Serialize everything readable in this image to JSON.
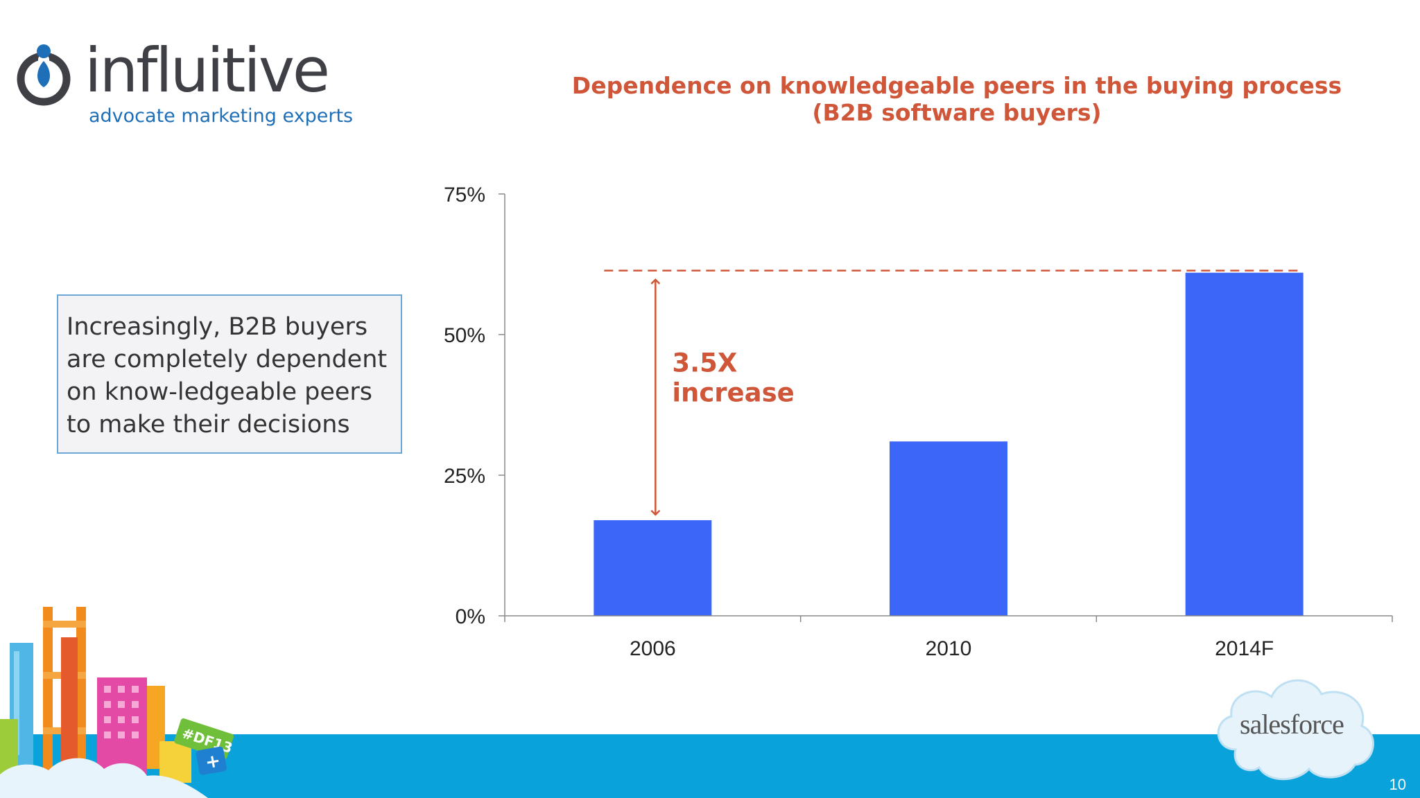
{
  "brand": {
    "name": "influitive",
    "tagline": "advocate marketing experts"
  },
  "callout": {
    "text": "Increasingly, B2B buyers are completely dependent on know-ledgeable peers to make their decisions"
  },
  "annotation": {
    "line1": "3.5X",
    "line2": "increase"
  },
  "footer": {
    "page_number": "10",
    "partner_logo": "salesforce",
    "event_badge": "#DF13",
    "badge_plus": "+"
  },
  "colors": {
    "bar": "#3b66f8",
    "accent": "#cf5638",
    "footer_band": "#0aa2da",
    "callout_border": "#6aa6d6"
  },
  "chart_data": {
    "type": "bar",
    "title_line1": "Dependence on knowledgeable peers in the buying process",
    "title_line2": "(B2B software buyers)",
    "categories": [
      "2006",
      "2010",
      "2014F"
    ],
    "values": [
      17,
      31,
      61
    ],
    "yticks": [
      0,
      25,
      50,
      75
    ],
    "ytick_labels": [
      "0%",
      "25%",
      "50%",
      "75%"
    ],
    "ylim": [
      0,
      75
    ],
    "xlabel": "",
    "ylabel": "",
    "grid": false,
    "reference_line_value": 61
  }
}
